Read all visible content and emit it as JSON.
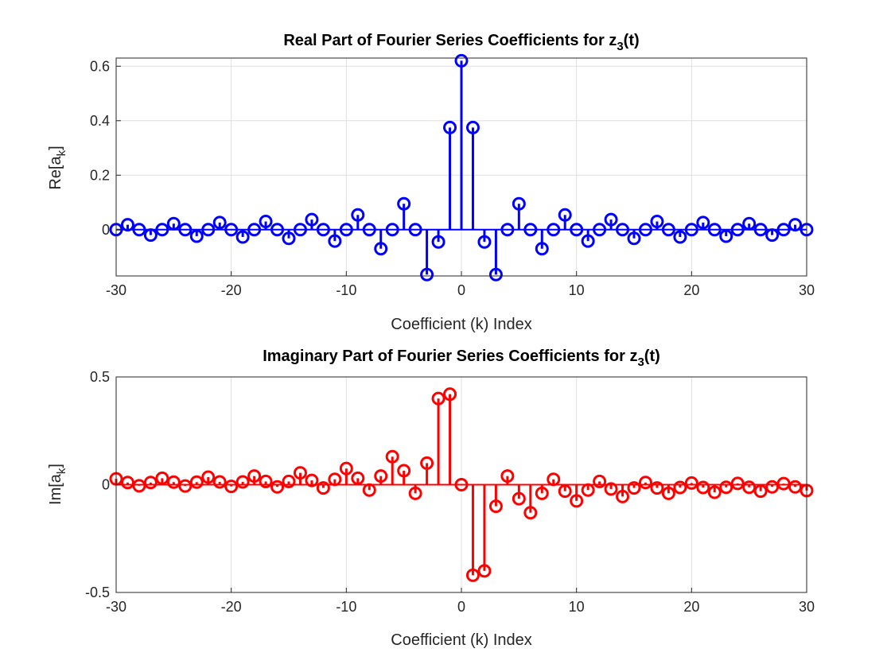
{
  "chart_data": [
    {
      "type": "stem",
      "title": "Real Part of Fourier Series Coefficients for z",
      "title_sub": "3",
      "title_tail": "(t)",
      "xlabel": "Coefficient (k) Index",
      "ylabel": "Re[a",
      "ylabel_sub": "k",
      "ylabel_tail": "]",
      "xlim": [
        -30,
        30
      ],
      "ylim": [
        -0.17,
        0.63
      ],
      "xticks": [
        "-30",
        "-20",
        "-10",
        "0",
        "10",
        "20",
        "30"
      ],
      "yticks": [
        "0",
        "0.2",
        "0.4",
        "0.6"
      ],
      "grid": true,
      "color": "#0000ff",
      "x": [
        -30,
        -29,
        -28,
        -27,
        -26,
        -25,
        -24,
        -23,
        -22,
        -21,
        -20,
        -19,
        -18,
        -17,
        -16,
        -15,
        -14,
        -13,
        -12,
        -11,
        -10,
        -9,
        -8,
        -7,
        -6,
        -5,
        -4,
        -3,
        -2,
        -1,
        0,
        1,
        2,
        3,
        4,
        5,
        6,
        7,
        8,
        9,
        10,
        11,
        12,
        13,
        14,
        15,
        16,
        17,
        18,
        19,
        20,
        21,
        22,
        23,
        24,
        25,
        26,
        27,
        28,
        29,
        30
      ],
      "values": [
        0.0,
        0.018,
        0.0,
        -0.02,
        0.0,
        0.022,
        0.0,
        -0.024,
        0.0,
        0.026,
        0.0,
        -0.027,
        0.0,
        0.03,
        0.0,
        -0.032,
        0.0,
        0.037,
        0.0,
        -0.042,
        0.0,
        0.054,
        0.0,
        -0.07,
        0.0,
        0.095,
        0.0,
        -0.165,
        -0.045,
        0.375,
        0.62,
        0.375,
        -0.045,
        -0.165,
        0.0,
        0.095,
        0.0,
        -0.07,
        0.0,
        0.054,
        0.0,
        -0.042,
        0.0,
        0.037,
        0.0,
        -0.032,
        0.0,
        0.03,
        0.0,
        -0.027,
        0.0,
        0.026,
        0.0,
        -0.024,
        0.0,
        0.022,
        0.0,
        -0.02,
        0.0,
        0.018,
        0.0
      ]
    },
    {
      "type": "stem",
      "title": "Imaginary Part of Fourier Series Coefficients for z",
      "title_sub": "3",
      "title_tail": "(t)",
      "xlabel": "Coefficient (k) Index",
      "ylabel": "Im[a",
      "ylabel_sub": "k",
      "ylabel_tail": "]",
      "xlim": [
        -30,
        30
      ],
      "ylim": [
        -0.5,
        0.5
      ],
      "xticks": [
        "-30",
        "-20",
        "-10",
        "0",
        "10",
        "20",
        "30"
      ],
      "yticks": [
        "-0.5",
        "0",
        "0.5"
      ],
      "grid": true,
      "color": "#ff0000",
      "x": [
        -30,
        -29,
        -28,
        -27,
        -26,
        -25,
        -24,
        -23,
        -22,
        -21,
        -20,
        -19,
        -18,
        -17,
        -16,
        -15,
        -14,
        -13,
        -12,
        -11,
        -10,
        -9,
        -8,
        -7,
        -6,
        -5,
        -4,
        -3,
        -2,
        -1,
        0,
        1,
        2,
        3,
        4,
        5,
        6,
        7,
        8,
        9,
        10,
        11,
        12,
        13,
        14,
        15,
        16,
        17,
        18,
        19,
        20,
        21,
        22,
        23,
        24,
        25,
        26,
        27,
        28,
        29,
        30
      ],
      "values": [
        0.027,
        0.01,
        -0.005,
        0.01,
        0.03,
        0.012,
        -0.006,
        0.012,
        0.035,
        0.013,
        -0.008,
        0.013,
        0.04,
        0.015,
        -0.01,
        0.015,
        0.055,
        0.02,
        -0.015,
        0.025,
        0.075,
        0.03,
        -0.025,
        0.04,
        0.13,
        0.065,
        -0.04,
        0.1,
        0.4,
        0.42,
        0.0,
        -0.42,
        -0.4,
        -0.1,
        0.04,
        -0.065,
        -0.13,
        -0.04,
        0.025,
        -0.03,
        -0.075,
        -0.025,
        0.015,
        -0.02,
        -0.055,
        -0.015,
        0.01,
        -0.015,
        -0.04,
        -0.013,
        0.008,
        -0.013,
        -0.035,
        -0.012,
        0.006,
        -0.012,
        -0.03,
        -0.01,
        0.005,
        -0.01,
        -0.027
      ]
    }
  ]
}
